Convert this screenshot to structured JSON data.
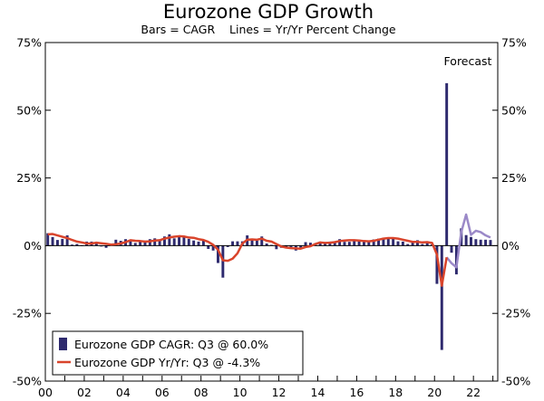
{
  "chart_data": {
    "type": "bar",
    "title": "Eurozone GDP Growth",
    "subtitle": "Bars = CAGR    Lines = Yr/Yr Percent Change",
    "annotation": "Forecast",
    "y_ticks_left": [
      "75%",
      "50%",
      "25%",
      "0%",
      "-25%",
      "-50%"
    ],
    "y_ticks_right": [
      "75%",
      "50%",
      "25%",
      "0%",
      "-25%",
      "-50%"
    ],
    "x_ticks": [
      "00",
      "02",
      "04",
      "06",
      "08",
      "10",
      "12",
      "14",
      "16",
      "18",
      "20",
      "22"
    ],
    "ylim": [
      -50,
      75
    ],
    "xlim": [
      2000.0,
      2023.25
    ],
    "grid": false,
    "legend_position": "bottom-left",
    "colors": {
      "bars": "#2e2a6e",
      "line_actual": "#d9442b",
      "line_forecast": "#9b89c8"
    },
    "forecast_start": 2020.75,
    "series": [
      {
        "name": "Eurozone GDP CAGR: Q3 @ 60.0%",
        "kind": "bar",
        "x": [
          2000.0,
          2000.25,
          2000.5,
          2000.75,
          2001.0,
          2001.25,
          2001.5,
          2001.75,
          2002.0,
          2002.25,
          2002.5,
          2002.75,
          2003.0,
          2003.25,
          2003.5,
          2003.75,
          2004.0,
          2004.25,
          2004.5,
          2004.75,
          2005.0,
          2005.25,
          2005.5,
          2005.75,
          2006.0,
          2006.25,
          2006.5,
          2006.75,
          2007.0,
          2007.25,
          2007.5,
          2007.75,
          2008.0,
          2008.25,
          2008.5,
          2008.75,
          2009.0,
          2009.25,
          2009.5,
          2009.75,
          2010.0,
          2010.25,
          2010.5,
          2010.75,
          2011.0,
          2011.25,
          2011.5,
          2011.75,
          2012.0,
          2012.25,
          2012.5,
          2012.75,
          2013.0,
          2013.25,
          2013.5,
          2013.75,
          2014.0,
          2014.25,
          2014.5,
          2014.75,
          2015.0,
          2015.25,
          2015.5,
          2015.75,
          2016.0,
          2016.25,
          2016.5,
          2016.75,
          2017.0,
          2017.25,
          2017.5,
          2017.75,
          2018.0,
          2018.25,
          2018.5,
          2018.75,
          2019.0,
          2019.25,
          2019.5,
          2019.75,
          2020.0,
          2020.25,
          2020.5,
          2020.75,
          2021.0,
          2021.25,
          2021.5,
          2021.75,
          2022.0,
          2022.25,
          2022.5,
          2022.75
        ],
        "values": [
          4.6,
          3.2,
          2.1,
          2.5,
          3.8,
          0.4,
          0.6,
          0.0,
          1.5,
          1.5,
          1.2,
          -0.3,
          -0.8,
          0.4,
          2.2,
          1.8,
          2.4,
          1.6,
          1.0,
          1.5,
          1.3,
          2.4,
          2.7,
          2.3,
          3.4,
          4.2,
          2.7,
          3.6,
          3.5,
          2.5,
          1.9,
          1.5,
          2.2,
          -1.2,
          -1.8,
          -6.4,
          -11.8,
          -0.5,
          1.6,
          1.6,
          1.6,
          3.8,
          2.1,
          1.9,
          3.4,
          0.8,
          0.3,
          -1.3,
          -0.8,
          -1.0,
          -0.5,
          -1.8,
          -0.9,
          1.3,
          1.1,
          0.9,
          1.0,
          0.7,
          1.5,
          1.6,
          2.4,
          1.4,
          1.4,
          2.0,
          2.2,
          1.4,
          1.7,
          2.3,
          2.6,
          2.9,
          2.5,
          2.9,
          1.6,
          1.5,
          0.6,
          1.4,
          2.0,
          0.6,
          1.1,
          0.5,
          -14.1,
          -38.5,
          60.0,
          -2.6,
          -10.6,
          6.4,
          3.9,
          3.2,
          2.4,
          2.2,
          2.2,
          2.1
        ]
      },
      {
        "name": "Eurozone GDP Yr/Yr: Q3 @ -4.3%",
        "kind": "line",
        "x": [
          2000.0,
          2000.25,
          2000.5,
          2000.75,
          2001.0,
          2001.25,
          2001.5,
          2001.75,
          2002.0,
          2002.25,
          2002.5,
          2002.75,
          2003.0,
          2003.25,
          2003.5,
          2003.75,
          2004.0,
          2004.25,
          2004.5,
          2004.75,
          2005.0,
          2005.25,
          2005.5,
          2005.75,
          2006.0,
          2006.25,
          2006.5,
          2006.75,
          2007.0,
          2007.25,
          2007.5,
          2007.75,
          2008.0,
          2008.25,
          2008.5,
          2008.75,
          2009.0,
          2009.25,
          2009.5,
          2009.75,
          2010.0,
          2010.25,
          2010.5,
          2010.75,
          2011.0,
          2011.25,
          2011.5,
          2011.75,
          2012.0,
          2012.25,
          2012.5,
          2012.75,
          2013.0,
          2013.25,
          2013.5,
          2013.75,
          2014.0,
          2014.25,
          2014.5,
          2014.75,
          2015.0,
          2015.25,
          2015.5,
          2015.75,
          2016.0,
          2016.25,
          2016.5,
          2016.75,
          2017.0,
          2017.25,
          2017.5,
          2017.75,
          2018.0,
          2018.25,
          2018.5,
          2018.75,
          2019.0,
          2019.25,
          2019.5,
          2019.75,
          2020.0,
          2020.25,
          2020.5
        ],
        "values": [
          4.2,
          4.3,
          3.8,
          3.3,
          2.8,
          2.1,
          1.5,
          1.2,
          0.8,
          0.8,
          1.1,
          0.9,
          0.7,
          0.4,
          0.5,
          0.8,
          1.3,
          2.0,
          1.8,
          1.7,
          1.5,
          1.6,
          1.9,
          2.0,
          2.6,
          3.0,
          3.3,
          3.5,
          3.4,
          3.0,
          2.9,
          2.4,
          2.1,
          1.4,
          0.3,
          -1.5,
          -5.4,
          -5.6,
          -4.8,
          -2.8,
          0.8,
          2.2,
          2.3,
          2.2,
          2.6,
          1.8,
          1.5,
          0.6,
          -0.3,
          -0.7,
          -0.9,
          -1.0,
          -1.1,
          -0.5,
          -0.2,
          0.6,
          1.2,
          1.0,
          1.1,
          1.3,
          1.7,
          1.9,
          2.0,
          2.0,
          1.9,
          1.7,
          1.6,
          1.8,
          2.2,
          2.6,
          2.8,
          2.8,
          2.6,
          2.2,
          1.8,
          1.4,
          1.4,
          1.2,
          1.3,
          1.0,
          -3.3,
          -14.8,
          -4.3
        ]
      },
      {
        "name": "",
        "kind": "line-forecast",
        "x": [
          2020.5,
          2020.75,
          2021.0,
          2021.25,
          2021.5,
          2021.75,
          2022.0,
          2022.25,
          2022.5,
          2022.75
        ],
        "values": [
          -4.3,
          -6.5,
          -8.0,
          5.0,
          11.5,
          4.0,
          5.5,
          5.0,
          3.8,
          3.0
        ]
      }
    ]
  }
}
